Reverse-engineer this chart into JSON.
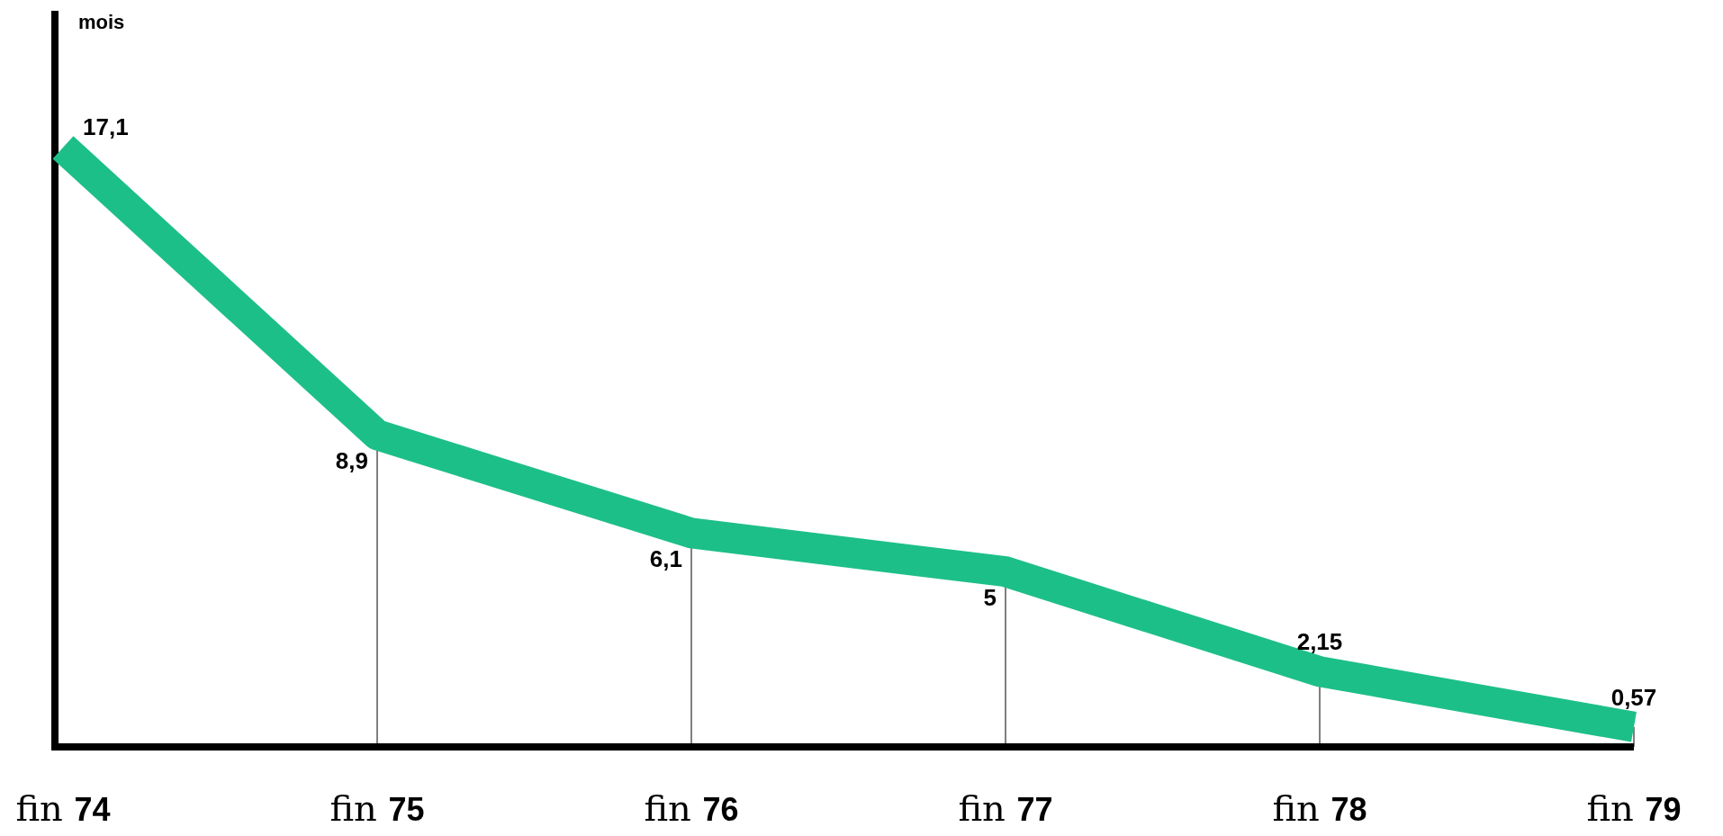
{
  "chart_data": {
    "type": "line",
    "ylabel": "mois",
    "categories": [
      "fin 74",
      "fin 75",
      "fin 76",
      "fin 77",
      "fin 78",
      "fin 79"
    ],
    "series": [
      {
        "color": "#1dbf88",
        "values": [
          17.1,
          8.9,
          6.1,
          5,
          2.15,
          0.57
        ],
        "value_labels": [
          "17,1",
          "8,9",
          "6,1",
          "5",
          "2,15",
          "0,57"
        ]
      }
    ],
    "ylim": [
      0,
      21
    ],
    "grid": "x",
    "line_style": "solid",
    "tick_labels": "x"
  }
}
